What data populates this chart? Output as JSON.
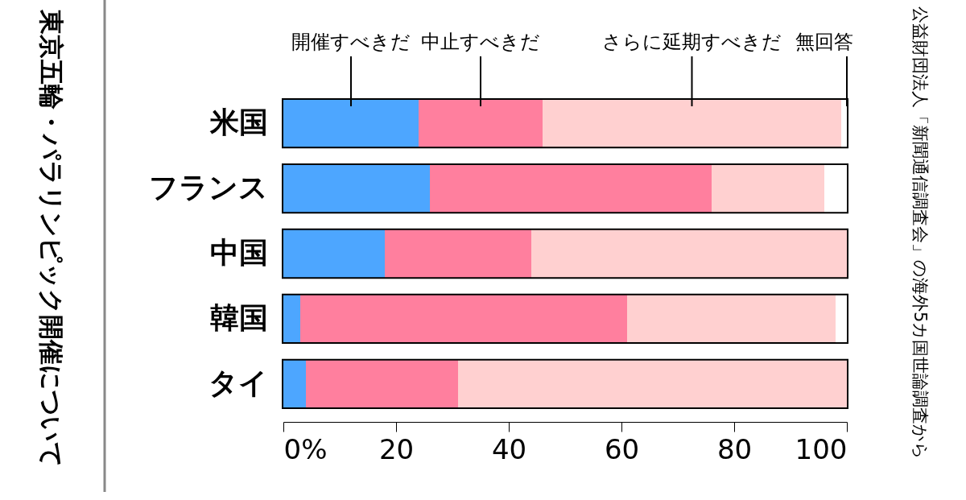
{
  "chart_data": {
    "type": "bar",
    "orientation": "horizontal",
    "stacked": true,
    "title": "東京五輪・パラリンピック開催について",
    "categories": [
      "米国",
      "フランス",
      "中国",
      "韓国",
      "タイ"
    ],
    "series": [
      {
        "name": "開催すべきだ",
        "color": "#4da6ff",
        "values": [
          24,
          26,
          18,
          3,
          4
        ]
      },
      {
        "name": "中止すべきだ",
        "color": "#ff7f9e",
        "values": [
          22,
          50,
          26,
          58,
          27
        ]
      },
      {
        "name": "さらに延期すべきだ",
        "color": "#ffd0d0",
        "values": [
          53,
          20,
          56,
          37,
          69
        ]
      },
      {
        "name": "無回答",
        "color": "#ffffff",
        "values": [
          1,
          4,
          0,
          2,
          0
        ]
      }
    ],
    "xlim": [
      0,
      100
    ],
    "xticks": [
      {
        "value": 0,
        "label": "0%"
      },
      20,
      40,
      60,
      80,
      100
    ],
    "grid": false,
    "annotations": [
      "公益財団法人「新聞通信調査会」の海外5カ国世論調査から"
    ]
  }
}
